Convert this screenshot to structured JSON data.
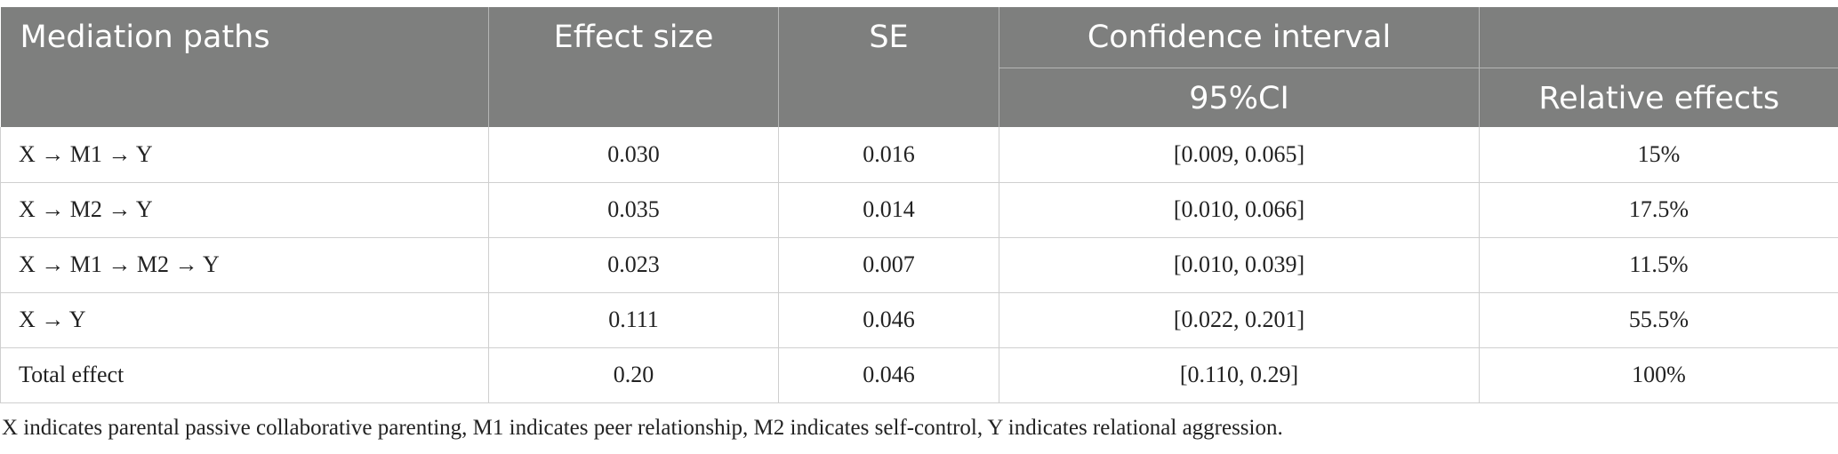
{
  "table": {
    "headers": {
      "mediation_paths": "Mediation paths",
      "effect_size": "Effect size",
      "se": "SE",
      "confidence_interval": "Confidence interval",
      "ci_95": "95%CI",
      "relative_effects": "Relative effects"
    },
    "rows": [
      {
        "path": "X → M1 → Y",
        "effect": "0.030",
        "se": "0.016",
        "ci": "[0.009, 0.065]",
        "relative": "15%"
      },
      {
        "path": "X → M2 → Y",
        "effect": "0.035",
        "se": "0.014",
        "ci": "[0.010, 0.066]",
        "relative": "17.5%"
      },
      {
        "path": "X → M1 → M2 → Y",
        "effect": "0.023",
        "se": "0.007",
        "ci": "[0.010, 0.039]",
        "relative": "11.5%"
      },
      {
        "path": "X → Y",
        "effect": "0.111",
        "se": "0.046",
        "ci": "[0.022, 0.201]",
        "relative": "55.5%"
      },
      {
        "path": "Total effect",
        "effect": "0.20",
        "se": "0.046",
        "ci": "[0.110, 0.29]",
        "relative": "100%"
      }
    ]
  },
  "footnote": "X indicates parental passive collaborative parenting, M1 indicates peer relationship, M2 indicates self-control, Y indicates relational aggression."
}
